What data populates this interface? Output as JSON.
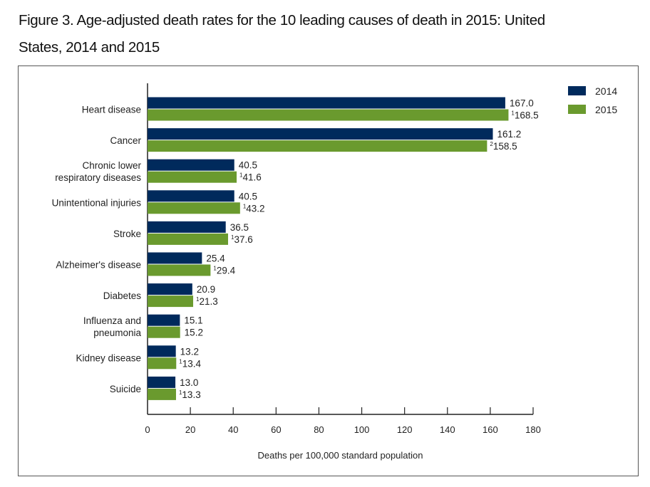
{
  "figure_title": "Figure 3. Age-adjusted death rates for the 10 leading causes of death in 2015: United States, 2014 and 2015",
  "title_lines": [
    "Figure 3. Age-adjusted death rates for the 10 leading causes of death in 2015: United",
    "States, 2014 and 2015"
  ],
  "chart_data": {
    "type": "bar",
    "orientation": "horizontal",
    "title": "Age-adjusted death rates for the 10 leading causes of death in 2015: United States, 2014 and 2015",
    "categories": [
      [
        "Heart disease"
      ],
      [
        "Cancer"
      ],
      [
        "Chronic lower",
        "respiratory diseases"
      ],
      [
        "Unintentional injuries"
      ],
      [
        "Stroke"
      ],
      [
        "Alzheimer's disease"
      ],
      [
        "Diabetes"
      ],
      [
        "Influenza and",
        "pneumonia"
      ],
      [
        "Kidney disease"
      ],
      [
        "Suicide"
      ]
    ],
    "series": [
      {
        "name": "2014",
        "color": "#002a5c",
        "values": [
          167.0,
          161.2,
          40.5,
          40.5,
          36.5,
          25.4,
          20.9,
          15.1,
          13.2,
          13.0
        ],
        "labels": [
          "167.0",
          "161.2",
          "40.5",
          "40.5",
          "36.5",
          "25.4",
          "20.9",
          "15.1",
          "13.2",
          "13.0"
        ],
        "footnotes": [
          "",
          "",
          "",
          "",
          "",
          "",
          "",
          "",
          "",
          ""
        ]
      },
      {
        "name": "2015",
        "color": "#6a9a2e",
        "values": [
          168.5,
          158.5,
          41.6,
          43.2,
          37.6,
          29.4,
          21.3,
          15.2,
          13.4,
          13.3
        ],
        "labels": [
          "168.5",
          "158.5",
          "41.6",
          "43.2",
          "37.6",
          "29.4",
          "21.3",
          "15.2",
          "13.4",
          "13.3"
        ],
        "footnotes": [
          "1",
          "2",
          "1",
          "1",
          "1",
          "1",
          "1",
          "",
          "1",
          "1"
        ]
      }
    ],
    "xlabel": "Deaths per 100,000 standard population",
    "ylabel": "",
    "xlim": [
      0,
      180
    ],
    "xticks": [
      0,
      20,
      40,
      60,
      80,
      100,
      120,
      140,
      160,
      180
    ],
    "grid": false,
    "legend": {
      "position": "top-right",
      "entries": [
        "2014",
        "2015"
      ]
    }
  }
}
